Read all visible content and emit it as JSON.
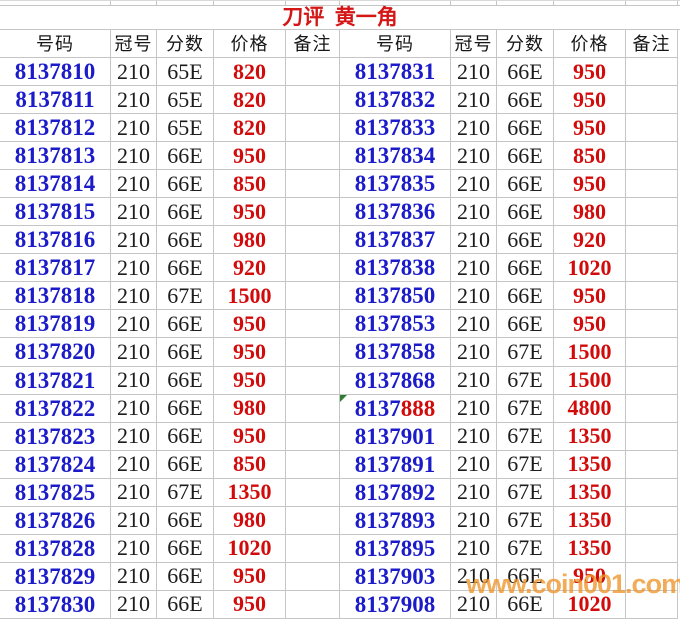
{
  "title": "刀评  黄一角",
  "headers": [
    "号码",
    "冠号",
    "分数",
    "价格",
    "备注"
  ],
  "watermark": "www.coin001.com",
  "colors": {
    "number_blue": "#1b1bca",
    "price_red": "#d20a0a",
    "title_red": "#d41616",
    "text_black": "#1c1c1c",
    "gridline_gray": "#c5c5c5",
    "watermark_orange": "#ee9428",
    "marker_green": "#2e7d32"
  },
  "left_rows": [
    {
      "number": "8137810",
      "crown": "210",
      "score": "65E",
      "price": "820",
      "note": ""
    },
    {
      "number": "8137811",
      "crown": "210",
      "score": "65E",
      "price": "820",
      "note": ""
    },
    {
      "number": "8137812",
      "crown": "210",
      "score": "65E",
      "price": "820",
      "note": ""
    },
    {
      "number": "8137813",
      "crown": "210",
      "score": "66E",
      "price": "950",
      "note": ""
    },
    {
      "number": "8137814",
      "crown": "210",
      "score": "66E",
      "price": "850",
      "note": ""
    },
    {
      "number": "8137815",
      "crown": "210",
      "score": "66E",
      "price": "950",
      "note": ""
    },
    {
      "number": "8137816",
      "crown": "210",
      "score": "66E",
      "price": "980",
      "note": ""
    },
    {
      "number": "8137817",
      "crown": "210",
      "score": "66E",
      "price": "920",
      "note": ""
    },
    {
      "number": "8137818",
      "crown": "210",
      "score": "67E",
      "price": "1500",
      "note": ""
    },
    {
      "number": "8137819",
      "crown": "210",
      "score": "66E",
      "price": "950",
      "note": ""
    },
    {
      "number": "8137820",
      "crown": "210",
      "score": "66E",
      "price": "950",
      "note": ""
    },
    {
      "number": "8137821",
      "crown": "210",
      "score": "66E",
      "price": "950",
      "note": ""
    },
    {
      "number": "8137822",
      "crown": "210",
      "score": "66E",
      "price": "980",
      "note": ""
    },
    {
      "number": "8137823",
      "crown": "210",
      "score": "66E",
      "price": "950",
      "note": ""
    },
    {
      "number": "8137824",
      "crown": "210",
      "score": "66E",
      "price": "850",
      "note": ""
    },
    {
      "number": "8137825",
      "crown": "210",
      "score": "67E",
      "price": "1350",
      "note": ""
    },
    {
      "number": "8137826",
      "crown": "210",
      "score": "66E",
      "price": "980",
      "note": ""
    },
    {
      "number": "8137828",
      "crown": "210",
      "score": "66E",
      "price": "1020",
      "note": ""
    },
    {
      "number": "8137829",
      "crown": "210",
      "score": "66E",
      "price": "950",
      "note": ""
    },
    {
      "number": "8137830",
      "crown": "210",
      "score": "66E",
      "price": "950",
      "note": ""
    }
  ],
  "right_rows": [
    {
      "number": "8137831",
      "crown": "210",
      "score": "66E",
      "price": "950",
      "note": ""
    },
    {
      "number": "8137832",
      "crown": "210",
      "score": "66E",
      "price": "950",
      "note": ""
    },
    {
      "number": "8137833",
      "crown": "210",
      "score": "66E",
      "price": "950",
      "note": ""
    },
    {
      "number": "8137834",
      "crown": "210",
      "score": "66E",
      "price": "850",
      "note": ""
    },
    {
      "number": "8137835",
      "crown": "210",
      "score": "66E",
      "price": "950",
      "note": ""
    },
    {
      "number": "8137836",
      "crown": "210",
      "score": "66E",
      "price": "980",
      "note": ""
    },
    {
      "number": "8137837",
      "crown": "210",
      "score": "66E",
      "price": "920",
      "note": ""
    },
    {
      "number": "8137838",
      "crown": "210",
      "score": "66E",
      "price": "1020",
      "note": ""
    },
    {
      "number": "8137850",
      "crown": "210",
      "score": "66E",
      "price": "950",
      "note": ""
    },
    {
      "number": "8137853",
      "crown": "210",
      "score": "66E",
      "price": "950",
      "note": ""
    },
    {
      "number": "8137858",
      "crown": "210",
      "score": "67E",
      "price": "1500",
      "note": ""
    },
    {
      "number": "8137868",
      "crown": "210",
      "score": "67E",
      "price": "1500",
      "note": ""
    },
    {
      "number": "8137",
      "number_red": "888",
      "marker": true,
      "crown": "210",
      "score": "67E",
      "price": "4800",
      "note": ""
    },
    {
      "number": "8137901",
      "crown": "210",
      "score": "67E",
      "price": "1350",
      "note": ""
    },
    {
      "number": "8137891",
      "crown": "210",
      "score": "67E",
      "price": "1350",
      "note": ""
    },
    {
      "number": "8137892",
      "crown": "210",
      "score": "67E",
      "price": "1350",
      "note": ""
    },
    {
      "number": "8137893",
      "crown": "210",
      "score": "67E",
      "price": "1350",
      "note": ""
    },
    {
      "number": "8137895",
      "crown": "210",
      "score": "67E",
      "price": "1350",
      "note": ""
    },
    {
      "number": "8137903",
      "crown": "210",
      "score": "66E",
      "price": "950",
      "note": ""
    },
    {
      "number": "8137908",
      "crown": "210",
      "score": "66E",
      "price": "1020",
      "note": ""
    }
  ]
}
